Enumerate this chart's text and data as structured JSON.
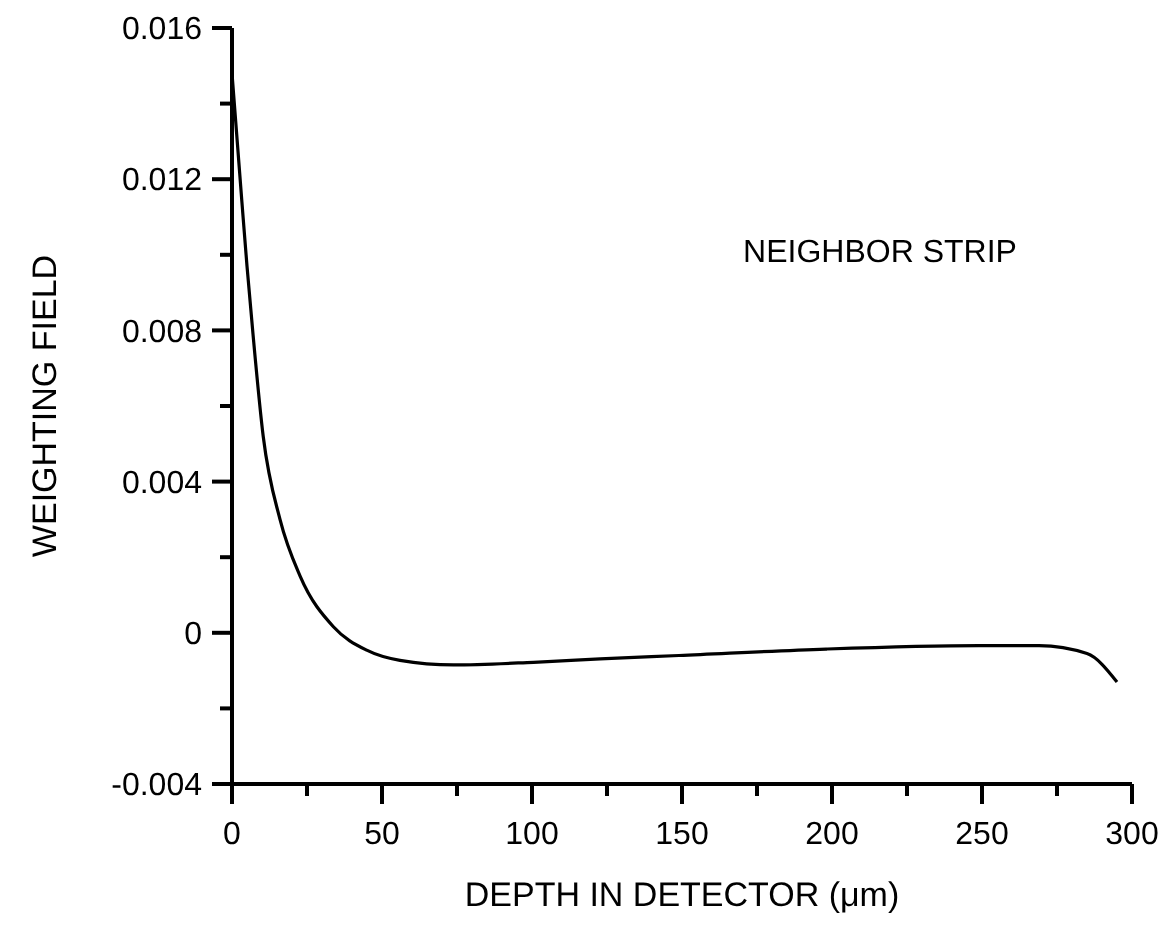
{
  "chart_data": {
    "type": "line",
    "xlabel": "DEPTH IN DETECTOR (μm)",
    "ylabel": "WEIGHTING FIELD",
    "annotations": [
      "NEIGHBOR STRIP"
    ],
    "x": [
      0,
      3.3,
      5,
      7,
      10.4,
      16,
      22.7,
      33.8,
      44.9,
      56,
      73.8,
      100.5,
      122.7,
      149,
      198,
      249,
      269,
      285,
      295
    ],
    "series": [
      {
        "color": "#000000",
        "values": [
          0.0148,
          0.0114,
          0.0097,
          0.0079,
          0.0052,
          0.003,
          0.0015,
          0.00016,
          -0.00046,
          -0.00073,
          -0.00085,
          -0.00078,
          -0.00069,
          -0.0006,
          -0.00043,
          -0.00034,
          -0.00034,
          -0.00055,
          -0.0013
        ]
      }
    ],
    "xlim": [
      0,
      300
    ],
    "ylim": [
      -0.004,
      0.016
    ],
    "xticks": [
      0,
      {
        "value": 25,
        "label": null
      },
      50,
      {
        "value": 75,
        "label": null
      },
      100,
      {
        "value": 125,
        "label": null
      },
      150,
      {
        "value": 175,
        "label": null
      },
      200,
      {
        "value": 225,
        "label": null
      },
      250,
      {
        "value": 275,
        "label": null
      },
      300
    ],
    "yticks": [
      -0.004,
      {
        "value": -0.002,
        "label": null
      },
      0,
      {
        "value": 0.002,
        "label": null
      },
      0.004,
      {
        "value": 0.006,
        "label": null
      },
      0.008,
      {
        "value": 0.01,
        "label": null
      },
      0.012,
      {
        "value": 0.014,
        "label": null
      },
      0.016
    ],
    "grid": false,
    "marker": "none",
    "line_style": "solid"
  }
}
